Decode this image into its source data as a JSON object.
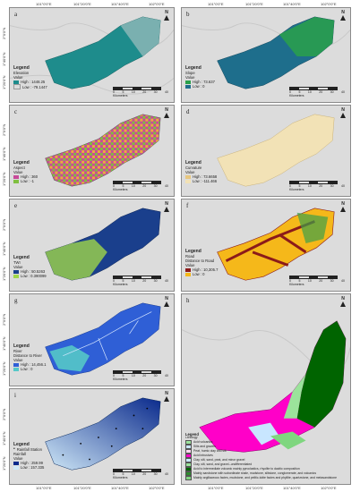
{
  "coords": {
    "top": [
      "101°0'0\"E",
      "101°20'0\"E",
      "101°40'0\"E",
      "102°0'0\"E",
      "101°0'0\"E",
      "101°20'0\"E",
      "101°40'0\"E",
      "102°0'0\"E"
    ],
    "bottom": [
      "101°0'0\"E",
      "101°20'0\"E",
      "101°40'0\"E",
      "102°0'0\"E",
      "101°0'0\"E",
      "101°20'0\"E",
      "101°40'0\"E",
      "102°0'0\"E"
    ],
    "left": [
      "2°0'0\"N",
      "1°40'0\"N",
      "1°20'0\"N",
      "2°0'0\"N",
      "1°40'0\"N",
      "1°20'0\"N",
      "2°0'0\"N",
      "1°40'0\"N",
      "1°20'0\"N",
      "2°0'0\"N",
      "1°40'0\"N",
      "1°20'0\"N",
      "2°0'0\"N",
      "1°40'0\"N",
      "1°20'0\"N"
    ]
  },
  "common": {
    "north": "N",
    "scale_unit": "Kilometers",
    "scale_ticks": [
      "0",
      "5",
      "10",
      "20",
      "30",
      "40"
    ],
    "legend_title": "Legend"
  },
  "panels": [
    {
      "id": "a",
      "label": "a",
      "layer": "Elevation",
      "value_label": "Value",
      "high": "High : 1448.25",
      "low": "Low : -79.1447",
      "ramp": [
        "#1e8c8c",
        "#dcdcdc"
      ]
    },
    {
      "id": "b",
      "label": "b",
      "layer": "Slope",
      "value_label": "Value",
      "high": "High : 73.637",
      "low": "Low : 0",
      "ramp": [
        "#2aa14a",
        "#1e6e8c"
      ]
    },
    {
      "id": "c",
      "label": "c",
      "layer": "Aspect",
      "value_label": "Value",
      "high": "High : 360",
      "low": "Low : -1",
      "ramp": [
        "#c84a9a",
        "#7fbf3f"
      ]
    },
    {
      "id": "d",
      "label": "d",
      "layer": "Curvature",
      "value_label": "Value",
      "high": "High : 73.6658",
      "low": "Low : -111.466",
      "ramp": [
        "#f2e2b6",
        "#e8c77f"
      ]
    },
    {
      "id": "e",
      "label": "e",
      "layer": "TWI",
      "value_label": "Value",
      "high": "High : 50.5263",
      "low": "Low : 0.390099",
      "ramp": [
        "#1a3f8c",
        "#9fd64a"
      ]
    },
    {
      "id": "f",
      "label": "f",
      "layer": "Road",
      "sub_label": "Distance to Road",
      "value_label": "Value",
      "high": "High : 10,305.7",
      "low": "Low : 0",
      "ramp": [
        "#8b1a1a",
        "#f5b81a"
      ]
    },
    {
      "id": "g",
      "label": "g",
      "layer": "River",
      "sub_label": "Distance to River",
      "value_label": "Value",
      "high": "High : 14,456.1",
      "low": "Low : 0",
      "ramp": [
        "#2f5fd6",
        "#55c8c8"
      ]
    },
    {
      "id": "i",
      "label": "i",
      "layer": "Rainfall Station",
      "sub_label": "Rainfall",
      "value_label": "Value",
      "high": "High : 259.99",
      "low": "Low : 157.335",
      "ramp": [
        "#0a2a8c",
        "#cfe8f7"
      ]
    }
  ],
  "geology": {
    "label": "h",
    "legend_title": "Legend",
    "sub_title": "Lithology",
    "items": [
      {
        "text": "Peat, humic clay and silt",
        "color": "#ffd7f0"
      },
      {
        "text": "Acid intrusives",
        "color": "#ff00c8"
      },
      {
        "text": "Clay, silt, sand, peat, and minor gravel",
        "color": "#c8e6ff"
      },
      {
        "text": "Clay, silt, sand, and gravel--undifferentiated",
        "color": "#9be39b"
      },
      {
        "text": "Acid to intermediate volcanic mainly pyroclastics, rhyolite to dacitic composition",
        "color": "#006400"
      },
      {
        "text": "Mainly sandstone with subordinate shale, mudstone, siltstone, conglomerate, and volcanics",
        "color": "#2e8b2e"
      },
      {
        "text": "Mainly argillaceous facies, mudstone, and pelitic-lutite facies and phyllite, quartzstone, and metasandstone",
        "color": "#7fd67f"
      }
    ],
    "extra_lines": [
      "Acid volcanics",
      "Silts and gravels"
    ]
  }
}
